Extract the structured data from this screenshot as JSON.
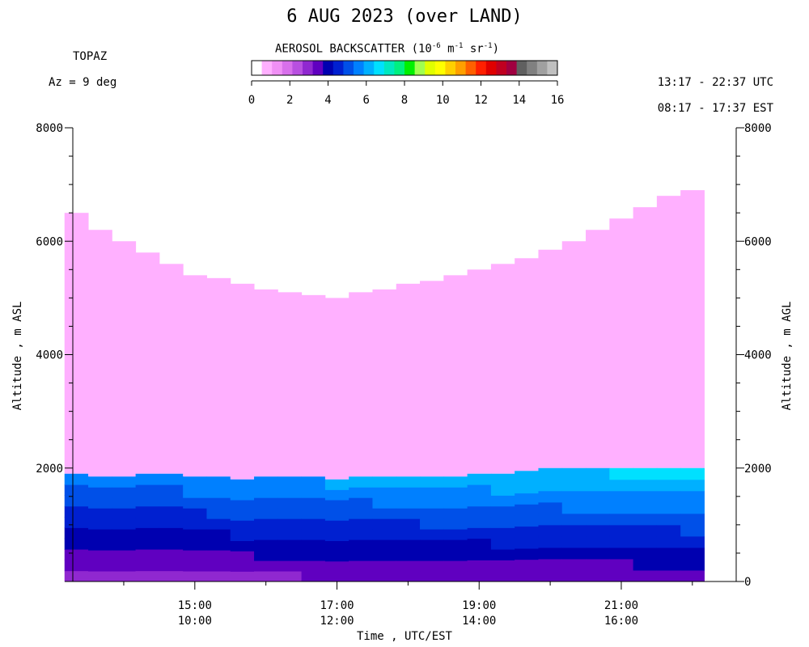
{
  "header": {
    "title": "6 AUG 2023 (over LAND)",
    "instrument": "TOPAZ",
    "azimuth": "Az =   9 deg",
    "utc_range": "13:17 - 22:37 UTC",
    "est_range": "08:17 - 17:37 EST"
  },
  "colorbar": {
    "title_main": "AEROSOL BACKSCATTER (10",
    "title_exp1": "-6",
    "title_mid": " m",
    "title_exp2": "-1",
    "title_mid2": " sr",
    "title_exp3": "-1",
    "title_end": ")",
    "range": [
      0,
      16
    ],
    "ticks": [
      "0",
      "2",
      "4",
      "6",
      "8",
      "10",
      "12",
      "14",
      "16"
    ],
    "colors": [
      "#ffffff",
      "#ffb0ff",
      "#f090f5",
      "#d870eb",
      "#b850e0",
      "#9028d0",
      "#6000c0",
      "#0000b0",
      "#0020d0",
      "#0050e8",
      "#0080ff",
      "#00b0ff",
      "#00e0ff",
      "#00e8c0",
      "#00f080",
      "#00f000",
      "#a0ff50",
      "#e0ff00",
      "#ffff00",
      "#ffd000",
      "#ffa000",
      "#ff6000",
      "#ff2000",
      "#e00000",
      "#c00020",
      "#a00040",
      "#606060",
      "#808080",
      "#a0a0a0",
      "#c0c0c0"
    ]
  },
  "axes": {
    "left_label": "Altitude , m ASL",
    "right_label": "Altitude , m AGL",
    "x_title": "Time , UTC/EST",
    "left_ticks": [
      "8000",
      "6000",
      "4000",
      "2000"
    ],
    "right_ticks": [
      "8000",
      "6000",
      "4000",
      "2000",
      "0"
    ],
    "x_ticks_utc": [
      "15:00",
      "17:00",
      "19:00",
      "21:00"
    ],
    "x_ticks_est": [
      "10:00",
      "12:00",
      "14:00",
      "16:00"
    ]
  },
  "chart_data": {
    "type": "heatmap",
    "title": "6 AUG 2023 (over LAND)",
    "xlabel": "Time , UTC/EST",
    "ylabel": "Altitude , m ASL",
    "y2label": "Altitude , m AGL",
    "x_range_utc": [
      "13:17",
      "22:37"
    ],
    "ylim": [
      0,
      8000
    ],
    "colorscale_range": [
      0,
      16
    ],
    "profile_times_utc": [
      "13:20",
      "13:40",
      "14:00",
      "14:20",
      "14:40",
      "15:00",
      "15:20",
      "15:40",
      "16:00",
      "16:20",
      "16:40",
      "17:00",
      "17:20",
      "17:40",
      "18:00",
      "18:20",
      "18:40",
      "19:00",
      "19:20",
      "19:40",
      "20:00",
      "20:20",
      "20:40",
      "21:00",
      "21:20",
      "21:40",
      "22:00"
    ],
    "aerosol_top_m": [
      6500,
      6200,
      6000,
      5800,
      5600,
      5400,
      5350,
      5250,
      5150,
      5100,
      5050,
      5000,
      5100,
      5150,
      5250,
      5300,
      5400,
      5500,
      5600,
      5700,
      5850,
      6000,
      6200,
      6400,
      6600,
      6800,
      6900
    ],
    "boundary_layer_top_m": [
      1900,
      1850,
      1850,
      1900,
      1900,
      1850,
      1850,
      1800,
      1850,
      1850,
      1850,
      1800,
      1850,
      1850,
      1850,
      1850,
      1850,
      1900,
      1900,
      1950,
      2000,
      2000,
      2000,
      2000,
      2000,
      2000,
      2000
    ],
    "free_troposphere_backscatter": 0.7,
    "boundary_layer_backscatter_range": [
      2,
      7
    ],
    "peak_backscatter": 7,
    "grid": false
  }
}
